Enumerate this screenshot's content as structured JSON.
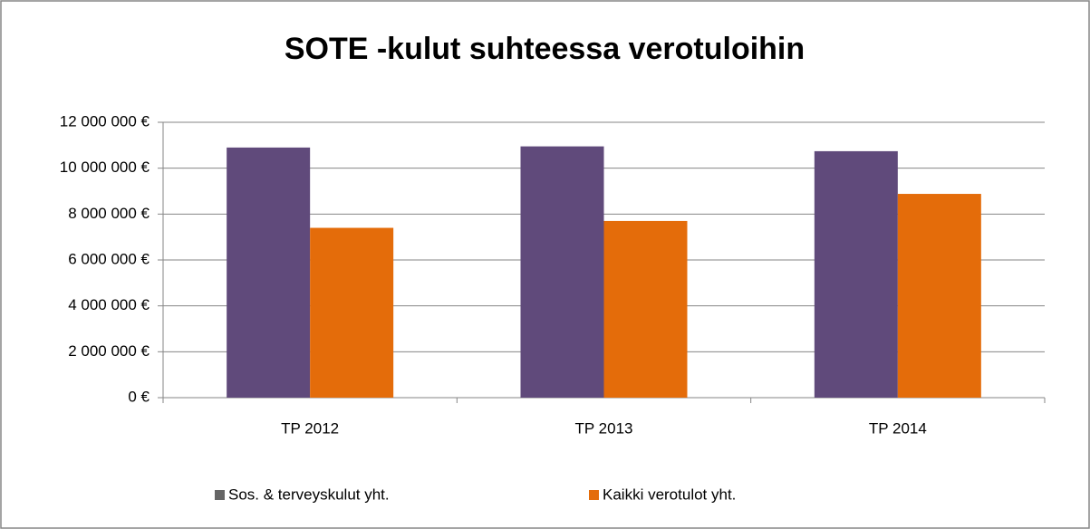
{
  "chart_data": {
    "type": "bar",
    "title": "SOTE -kulut suhteessa verotuloihin",
    "categories": [
      "TP 2012",
      "TP 2013",
      "TP 2014"
    ],
    "series": [
      {
        "name": "Sos. & terveyskulut yht.",
        "color": "#604a7b",
        "legend_color": "#666666",
        "values": [
          10900000,
          10950000,
          10740000
        ]
      },
      {
        "name": "Kaikki verotulot yht.",
        "color": "#e46c0a",
        "legend_color": "#e46c0a",
        "values": [
          7400000,
          7700000,
          8880000
        ]
      }
    ],
    "ylim": [
      0,
      12000000
    ],
    "yticks": [
      {
        "value": 0,
        "label": "0 €"
      },
      {
        "value": 2000000,
        "label": "2 000 000 €"
      },
      {
        "value": 4000000,
        "label": "4 000 000 €"
      },
      {
        "value": 6000000,
        "label": "6 000 000 €"
      },
      {
        "value": 8000000,
        "label": "8 000 000 €"
      },
      {
        "value": 10000000,
        "label": "10 000 000 €"
      },
      {
        "value": 12000000,
        "label": "12 000 000 €"
      }
    ],
    "grid": true,
    "legend": "bottom"
  }
}
